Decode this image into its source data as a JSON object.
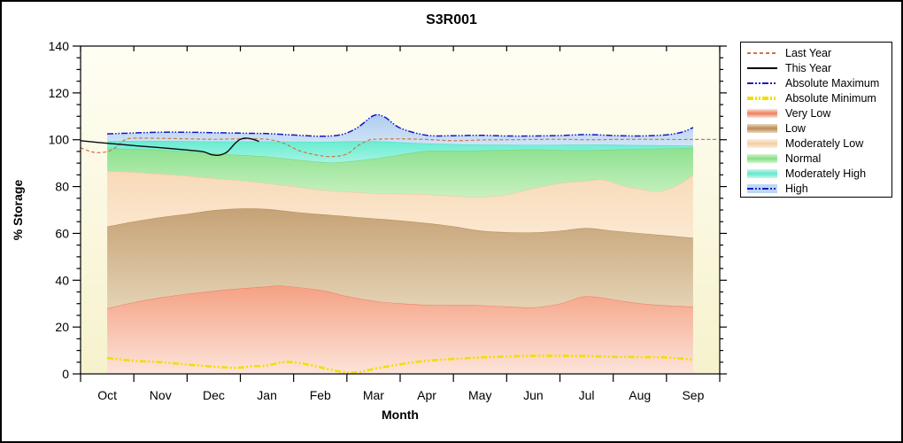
{
  "title": "S3R001",
  "colors": {
    "plot_bg_top": "#fffef3",
    "plot_bg_bottom": "#f6f2cd",
    "frame": "#000000",
    "abs_max_line": "#1515cc",
    "abs_min_line": "#f0df00",
    "last_year_line": "#c87848",
    "this_year_line": "#0a0a0a"
  },
  "legend": {
    "items": [
      {
        "label": "Last Year",
        "type": "line",
        "pattern": "dash",
        "color": "#c87848",
        "weight": 1
      },
      {
        "label": "This Year",
        "type": "line",
        "pattern": "solid",
        "color": "#000000",
        "weight": 1
      },
      {
        "label": "Absolute Maximum",
        "type": "line",
        "pattern": "dashdotdot",
        "color": "#1a1acc",
        "weight": 1
      },
      {
        "label": "Absolute Minimum",
        "type": "line",
        "pattern": "dashdotdot",
        "color": "#f0df00",
        "weight": 3
      },
      {
        "label": "Very Low",
        "type": "band",
        "color": "#f08868",
        "light": "#fde3da"
      },
      {
        "label": "Low",
        "type": "band",
        "color": "#c09060",
        "light": "#e8d8bc"
      },
      {
        "label": "Moderately Low",
        "type": "band",
        "color": "#f3d0a8",
        "light": "#fceedd"
      },
      {
        "label": "Normal",
        "type": "band",
        "color": "#8ce08c",
        "light": "#d8f5d0"
      },
      {
        "label": "Moderately High",
        "type": "band",
        "color": "#6ae9cd",
        "light": "#c8f7ec"
      },
      {
        "label": "High",
        "type": "band_line",
        "color": "#1a1acc",
        "light": "#bdd8f2"
      }
    ]
  },
  "chart_data": {
    "type": "area",
    "title": "S3R001",
    "xlabel": "Month",
    "ylabel": "% Storage",
    "categories": [
      "Oct",
      "Nov",
      "Dec",
      "Jan",
      "Feb",
      "Mar",
      "Apr",
      "May",
      "Jun",
      "Jul",
      "Aug",
      "Sep"
    ],
    "ylim": [
      0,
      140
    ],
    "y_major_tick_step": 20,
    "y_minor_tick_step": 5,
    "y_tick_labels": [
      "0",
      "20",
      "40",
      "60",
      "80",
      "100",
      "120",
      "140"
    ],
    "grid": "off",
    "legend_position": "right",
    "note": "x values below are in month units: 0=Oct center ... 11=Sep center; shaded bands span Oct..Sep centers",
    "boundaries": {
      "very_low_top": [
        [
          0,
          28.0
        ],
        [
          0.5,
          30.6
        ],
        [
          1,
          32.6
        ],
        [
          1.5,
          34.2
        ],
        [
          2,
          35.4
        ],
        [
          2.5,
          36.5
        ],
        [
          3,
          37.3
        ],
        [
          3.3,
          37.6
        ],
        [
          4,
          35.8
        ],
        [
          4.5,
          33.2
        ],
        [
          5,
          31.2
        ],
        [
          5.5,
          30.1
        ],
        [
          6,
          29.5
        ],
        [
          6.5,
          29.4
        ],
        [
          7,
          29.3
        ],
        [
          7.5,
          28.8
        ],
        [
          8,
          28.4
        ],
        [
          8.5,
          30.0
        ],
        [
          8.9,
          32.9
        ],
        [
          9.2,
          32.9
        ],
        [
          9.6,
          31.4
        ],
        [
          10,
          30.1
        ],
        [
          10.5,
          29.2
        ],
        [
          11,
          28.7
        ]
      ],
      "low_top": [
        [
          0,
          62.9
        ],
        [
          0.5,
          65.1
        ],
        [
          1,
          66.9
        ],
        [
          1.5,
          68.3
        ],
        [
          2,
          69.9
        ],
        [
          2.5,
          70.6
        ],
        [
          3,
          70.4
        ],
        [
          3.5,
          69.2
        ],
        [
          4,
          68.2
        ],
        [
          4.5,
          67.3
        ],
        [
          5,
          66.4
        ],
        [
          5.5,
          65.5
        ],
        [
          6,
          64.4
        ],
        [
          6.5,
          63.0
        ],
        [
          7,
          61.2
        ],
        [
          7.5,
          60.5
        ],
        [
          8,
          60.4
        ],
        [
          8.5,
          61.1
        ],
        [
          9,
          62.3
        ],
        [
          9.5,
          61.1
        ],
        [
          10,
          60.1
        ],
        [
          10.5,
          59.1
        ],
        [
          11,
          58.1
        ]
      ],
      "mod_low_top": [
        [
          0,
          86.6
        ],
        [
          0.5,
          86.2
        ],
        [
          1,
          85.4
        ],
        [
          1.5,
          84.6
        ],
        [
          2,
          83.5
        ],
        [
          2.5,
          82.6
        ],
        [
          3,
          81.4
        ],
        [
          3.5,
          80.1
        ],
        [
          4,
          78.6
        ],
        [
          4.5,
          77.8
        ],
        [
          5,
          77.2
        ],
        [
          5.5,
          76.9
        ],
        [
          6,
          76.7
        ],
        [
          6.5,
          76.0
        ],
        [
          7,
          75.6
        ],
        [
          7.5,
          76.6
        ],
        [
          8,
          79.3
        ],
        [
          8.5,
          81.4
        ],
        [
          9,
          82.4
        ],
        [
          9.3,
          83.0
        ],
        [
          9.7,
          80.3
        ],
        [
          10,
          79.0
        ],
        [
          10.35,
          78.0
        ],
        [
          10.7,
          80.6
        ],
        [
          11,
          84.9
        ]
      ],
      "normal_top": [
        [
          0,
          96.3
        ],
        [
          0.5,
          96.0
        ],
        [
          1,
          95.7
        ],
        [
          1.5,
          95.0
        ],
        [
          2,
          94.1
        ],
        [
          2.5,
          93.5
        ],
        [
          3,
          92.8
        ],
        [
          3.5,
          91.6
        ],
        [
          4,
          90.5
        ],
        [
          4.3,
          90.3
        ],
        [
          5,
          91.9
        ],
        [
          5.5,
          93.6
        ],
        [
          6,
          95.2
        ],
        [
          6.5,
          95.3
        ],
        [
          7,
          95.4
        ],
        [
          7.5,
          95.7
        ],
        [
          8,
          95.9
        ],
        [
          8.5,
          95.6
        ],
        [
          9,
          95.5
        ],
        [
          9.5,
          95.8
        ],
        [
          10,
          96.1
        ],
        [
          10.5,
          96.3
        ],
        [
          11,
          96.6
        ]
      ],
      "mod_high_top": [
        [
          0,
          99.4
        ],
        [
          1,
          99.5
        ],
        [
          2,
          99.3
        ],
        [
          3,
          99.3
        ],
        [
          4,
          99.1
        ],
        [
          5,
          99.4
        ],
        [
          6,
          98.4
        ],
        [
          7,
          97.9
        ],
        [
          8,
          97.8
        ],
        [
          9,
          97.9
        ],
        [
          10,
          97.7
        ],
        [
          11,
          97.5
        ]
      ],
      "high_top": [
        [
          0,
          102.5
        ],
        [
          0.5,
          102.9
        ],
        [
          1,
          103.2
        ],
        [
          1.5,
          103.2
        ],
        [
          2,
          103.0
        ],
        [
          2.5,
          102.8
        ],
        [
          3,
          102.6
        ],
        [
          3.5,
          102.0
        ],
        [
          4,
          101.5
        ],
        [
          4.4,
          102.2
        ],
        [
          4.7,
          105.2
        ],
        [
          5,
          110.3
        ],
        [
          5.2,
          109.8
        ],
        [
          5.5,
          105.0
        ],
        [
          6,
          101.9
        ],
        [
          6.5,
          101.7
        ],
        [
          7,
          101.9
        ],
        [
          7.5,
          101.6
        ],
        [
          8,
          101.6
        ],
        [
          8.5,
          101.8
        ],
        [
          9,
          102.2
        ],
        [
          9.5,
          101.8
        ],
        [
          10,
          101.6
        ],
        [
          10.5,
          102.1
        ],
        [
          10.8,
          103.3
        ],
        [
          11,
          105.2
        ]
      ],
      "abs_min": [
        [
          0,
          6.8
        ],
        [
          0.5,
          5.6
        ],
        [
          1,
          5.0
        ],
        [
          1.5,
          4.0
        ],
        [
          2,
          3.1
        ],
        [
          2.4,
          2.6
        ],
        [
          2.7,
          3.2
        ],
        [
          3,
          3.6
        ],
        [
          3.3,
          5.0
        ],
        [
          3.6,
          4.7
        ],
        [
          4,
          2.8
        ],
        [
          4.4,
          0.9
        ],
        [
          4.7,
          0.6
        ],
        [
          5,
          2.1
        ],
        [
          5.5,
          4.1
        ],
        [
          6,
          5.6
        ],
        [
          6.5,
          6.4
        ],
        [
          7,
          7.0
        ],
        [
          7.5,
          7.4
        ],
        [
          8,
          7.7
        ],
        [
          8.5,
          7.7
        ],
        [
          9,
          7.6
        ],
        [
          9.5,
          7.3
        ],
        [
          10,
          7.2
        ],
        [
          10.5,
          7.0
        ],
        [
          11,
          6.1
        ]
      ],
      "last_year": [
        [
          -0.5,
          96.6
        ],
        [
          -0.33,
          95.1
        ],
        [
          -0.18,
          94.5
        ],
        [
          0,
          94.9
        ],
        [
          0.15,
          96.6
        ],
        [
          0.3,
          99.5
        ],
        [
          0.45,
          100.6
        ],
        [
          1,
          100.6
        ],
        [
          1.5,
          100.4
        ],
        [
          2,
          100.2
        ],
        [
          2.5,
          100.4
        ],
        [
          3,
          100.2
        ],
        [
          3.3,
          98.6
        ],
        [
          3.6,
          95.4
        ],
        [
          3.9,
          93.6
        ],
        [
          4.2,
          92.8
        ],
        [
          4.5,
          93.9
        ],
        [
          4.7,
          97.4
        ],
        [
          4.9,
          99.7
        ],
        [
          5,
          100.2
        ],
        [
          5.5,
          100.4
        ],
        [
          6,
          100.1
        ],
        [
          6.5,
          99.6
        ],
        [
          7,
          99.9
        ],
        [
          7.5,
          100.0
        ],
        [
          8,
          100.1
        ],
        [
          8.5,
          100.2
        ],
        [
          9,
          100.0
        ],
        [
          9.5,
          100.1
        ],
        [
          10,
          100.2
        ],
        [
          10.5,
          100.1
        ],
        [
          11,
          100.1
        ],
        [
          11.45,
          100.1
        ]
      ],
      "this_year": [
        [
          -0.5,
          99.6
        ],
        [
          0,
          98.5
        ],
        [
          0.5,
          97.5
        ],
        [
          1,
          96.6
        ],
        [
          1.5,
          95.6
        ],
        [
          1.8,
          94.9
        ],
        [
          1.95,
          93.7
        ],
        [
          2.1,
          93.4
        ],
        [
          2.25,
          94.8
        ],
        [
          2.4,
          98.4
        ],
        [
          2.5,
          100.2
        ],
        [
          2.62,
          100.7
        ],
        [
          2.75,
          100.1
        ],
        [
          2.85,
          99.3
        ]
      ]
    },
    "bands": [
      {
        "name": "Very Low",
        "lower": "zero",
        "upper": "very_low_top",
        "top_color": "#f5a183",
        "bottom_color": "#fce4da",
        "edge": "#ee8165"
      },
      {
        "name": "Low",
        "lower": "very_low_top",
        "upper": "low_top",
        "top_color": "#c6a276",
        "bottom_color": "#e4d3b4",
        "edge": "#b68c5c"
      },
      {
        "name": "Moderately Low",
        "lower": "low_top",
        "upper": "mod_low_top",
        "top_color": "#f7dab8",
        "bottom_color": "#fbe9d2",
        "edge": "#eec9a0"
      },
      {
        "name": "Normal",
        "lower": "mod_low_top",
        "upper": "normal_top",
        "top_color": "#8de18f",
        "bottom_color": "#c8f1c0",
        "edge": "#79d47b"
      },
      {
        "name": "Moderately High",
        "lower": "normal_top",
        "upper": "mod_high_top",
        "top_color": "#68ecd0",
        "bottom_color": "#a5f4e4",
        "edge": "#50e0c4"
      },
      {
        "name": "High",
        "lower": "mod_high_top",
        "upper": "high_top",
        "top_color": "#aecdee",
        "bottom_color": "#d2e4f8",
        "edge": "none"
      }
    ],
    "lines": [
      {
        "name": "Absolute Minimum",
        "ref": "abs_min",
        "color": "#f0df00",
        "width": 2.6,
        "dash": "7 2.5 2 2.5 2 2.5"
      },
      {
        "name": "Last Year",
        "ref": "last_year",
        "color": "#c87848",
        "width": 1.2,
        "dash": "4 2.5"
      },
      {
        "name": "This Year",
        "ref": "this_year",
        "color": "#0a0a0a",
        "width": 1.4,
        "dash": ""
      },
      {
        "name": "Absolute Maximum",
        "ref": "high_top",
        "color": "#1515cc",
        "width": 1.5,
        "dash": "7 2 1.5 2 1.5 2"
      }
    ]
  }
}
